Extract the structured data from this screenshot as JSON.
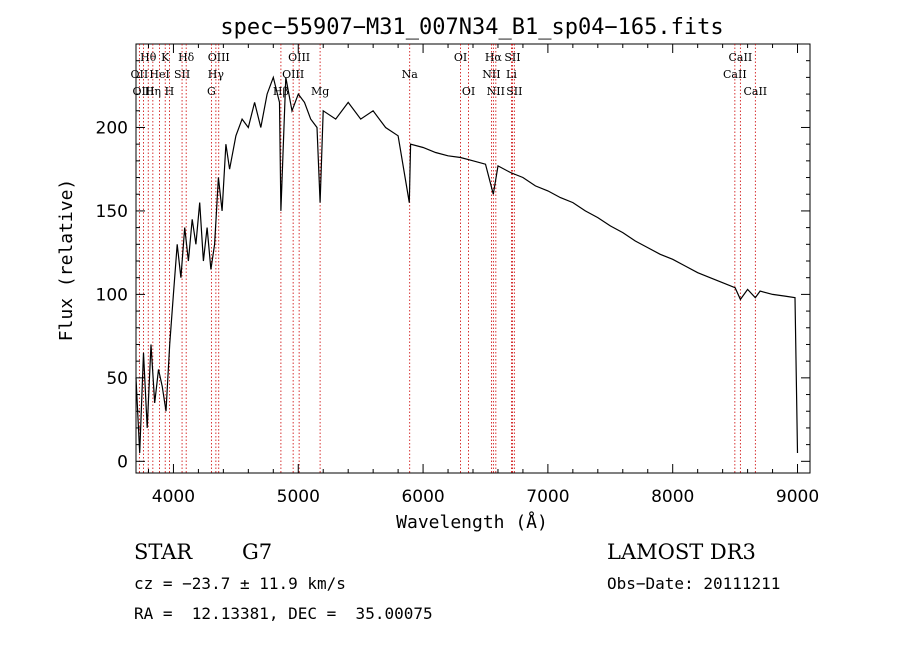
{
  "chart_data": {
    "type": "line",
    "title": "spec−55907−M31_007N34_B1_sp04−165.fits",
    "xlabel": "Wavelength (Å)",
    "ylabel": "Flux (relative)",
    "xlim": [
      3700,
      9100
    ],
    "ylim": [
      -7,
      250
    ],
    "x_ticks": [
      4000,
      5000,
      6000,
      7000,
      8000,
      9000
    ],
    "y_ticks": [
      0,
      50,
      100,
      150,
      200
    ],
    "series": [
      {
        "name": "spectrum",
        "x": [
          3700,
          3730,
          3760,
          3790,
          3820,
          3850,
          3880,
          3910,
          3940,
          3970,
          4000,
          4030,
          4060,
          4090,
          4120,
          4150,
          4180,
          4210,
          4240,
          4270,
          4300,
          4330,
          4360,
          4390,
          4420,
          4450,
          4500,
          4550,
          4600,
          4650,
          4700,
          4750,
          4800,
          4850,
          4861,
          4900,
          4950,
          5000,
          5050,
          5100,
          5150,
          5175,
          5200,
          5300,
          5400,
          5500,
          5600,
          5700,
          5800,
          5890,
          5900,
          6000,
          6100,
          6200,
          6300,
          6400,
          6500,
          6563,
          6600,
          6700,
          6800,
          6900,
          7000,
          7100,
          7200,
          7300,
          7400,
          7500,
          7600,
          7700,
          7800,
          7900,
          8000,
          8100,
          8200,
          8300,
          8400,
          8500,
          8542,
          8600,
          8662,
          8700,
          8800,
          8900,
          8980,
          8990,
          9000
        ],
        "y": [
          50,
          5,
          65,
          20,
          70,
          35,
          55,
          45,
          30,
          70,
          100,
          130,
          110,
          140,
          120,
          145,
          130,
          155,
          120,
          140,
          115,
          130,
          170,
          150,
          190,
          175,
          195,
          205,
          200,
          215,
          200,
          220,
          230,
          215,
          150,
          230,
          210,
          220,
          215,
          205,
          200,
          155,
          210,
          205,
          215,
          205,
          210,
          200,
          195,
          155,
          190,
          188,
          185,
          183,
          182,
          180,
          178,
          160,
          177,
          173,
          170,
          165,
          162,
          158,
          155,
          150,
          146,
          141,
          137,
          132,
          128,
          124,
          121,
          117,
          113,
          110,
          107,
          104,
          97,
          103,
          98,
          102,
          100,
          99,
          98,
          50,
          5
        ]
      }
    ],
    "spectral_lines": [
      {
        "label": "Hθ",
        "x": 3798,
        "row": 1
      },
      {
        "label": "OII",
        "x": 3727,
        "row": 2
      },
      {
        "label": "OIII",
        "x": 3760,
        "row": 3
      },
      {
        "label": "K",
        "x": 3934,
        "row": 1
      },
      {
        "label": "HeI",
        "x": 3889,
        "row": 2
      },
      {
        "label": "Hη",
        "x": 3835,
        "row": 3
      },
      {
        "label": "Hδ",
        "x": 4102,
        "row": 1
      },
      {
        "label": "SII",
        "x": 4069,
        "row": 2
      },
      {
        "label": "H",
        "x": 3968,
        "row": 3
      },
      {
        "label": "OIII",
        "x": 4363,
        "row": 1
      },
      {
        "label": "Hγ",
        "x": 4340,
        "row": 2
      },
      {
        "label": "G",
        "x": 4304,
        "row": 3
      },
      {
        "label": "OIII",
        "x": 5007,
        "row": 1
      },
      {
        "label": "OIII",
        "x": 4959,
        "row": 2
      },
      {
        "label": "Hβ",
        "x": 4861,
        "row": 3
      },
      {
        "label": "Mg",
        "x": 5175,
        "row": 3
      },
      {
        "label": "Na",
        "x": 5893,
        "row": 2
      },
      {
        "label": "OI",
        "x": 6300,
        "row": 1
      },
      {
        "label": "OI",
        "x": 6364,
        "row": 3
      },
      {
        "label": "Hα",
        "x": 6563,
        "row": 1
      },
      {
        "label": "NII",
        "x": 6548,
        "row": 2
      },
      {
        "label": "NII",
        "x": 6583,
        "row": 3
      },
      {
        "label": "SII",
        "x": 6716,
        "row": 1
      },
      {
        "label": "Li",
        "x": 6708,
        "row": 2
      },
      {
        "label": "SII",
        "x": 6731,
        "row": 3
      },
      {
        "label": "CaII",
        "x": 8542,
        "row": 1
      },
      {
        "label": "CaII",
        "x": 8498,
        "row": 2
      },
      {
        "label": "CaII",
        "x": 8662,
        "row": 3
      }
    ]
  },
  "info": {
    "class": "STAR",
    "subclass": "G7",
    "survey": "LAMOST DR3",
    "cz": "cz = −23.7 ± 11.9 km/s",
    "obs_date": "Obs−Date: 20111211",
    "coords": "RA =  12.13381, DEC =  35.00075"
  }
}
